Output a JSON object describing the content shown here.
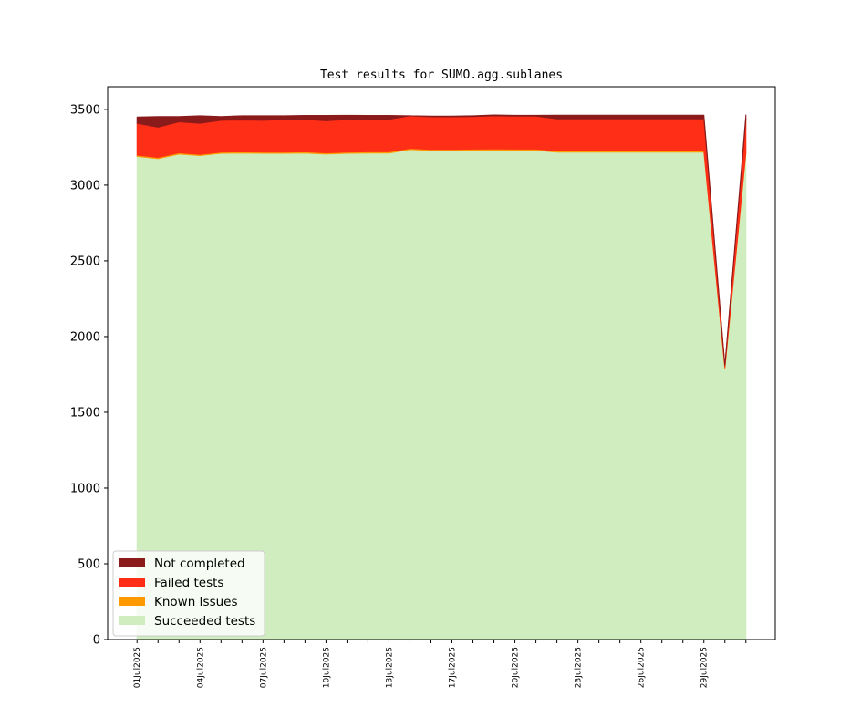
{
  "chart_data": {
    "type": "area",
    "title": "Test results for SUMO.agg.sublanes",
    "xlabel": "",
    "ylabel": "",
    "ylim": [
      0,
      3650
    ],
    "yticks": [
      0,
      500,
      1000,
      1500,
      2000,
      2500,
      3000,
      3500
    ],
    "x_tick_labels": [
      "01Jul2025",
      "04Jul2025",
      "07Jul2025",
      "10Jul2025",
      "13Jul2025",
      "17Jul2025",
      "20Jul2025",
      "23Jul2025",
      "26Jul2025",
      "29Jul2025"
    ],
    "x_tick_positions": [
      0,
      3,
      6,
      9,
      12,
      15,
      18,
      21,
      24,
      27
    ],
    "x_minor_ticks": [
      1,
      2,
      4,
      5,
      7,
      8,
      10,
      11,
      13,
      14,
      16,
      17,
      19,
      20,
      22,
      23,
      25,
      26,
      28,
      29
    ],
    "xlim": [
      -1.4,
      30.4
    ],
    "x": [
      0,
      1,
      2,
      3,
      4,
      5,
      6,
      7,
      8,
      9,
      10,
      11,
      12,
      13,
      14,
      15,
      16,
      17,
      18,
      19,
      20,
      21,
      22,
      23,
      24,
      25,
      26,
      27,
      28,
      29
    ],
    "series": [
      {
        "name": "Succeeded tests",
        "color": "#d0edc0",
        "values": [
          3190,
          3175,
          3205,
          3195,
          3210,
          3212,
          3210,
          3210,
          3212,
          3205,
          3210,
          3212,
          3212,
          3235,
          3228,
          3228,
          3230,
          3232,
          3230,
          3230,
          3218,
          3218,
          3218,
          3218,
          3218,
          3218,
          3218,
          3218,
          1790,
          3210
        ]
      },
      {
        "name": "Known Issues",
        "color": "#ff9900",
        "values": [
          8,
          8,
          8,
          8,
          8,
          8,
          8,
          8,
          8,
          8,
          8,
          8,
          8,
          8,
          8,
          8,
          8,
          8,
          8,
          8,
          8,
          8,
          8,
          8,
          8,
          8,
          8,
          8,
          5,
          8
        ]
      },
      {
        "name": "Failed tests",
        "color": "#ff2e17",
        "values": [
          210,
          200,
          205,
          205,
          210,
          210,
          210,
          215,
          215,
          212,
          215,
          215,
          215,
          215,
          215,
          215,
          215,
          218,
          218,
          218,
          212,
          212,
          212,
          212,
          212,
          212,
          212,
          212,
          15,
          220
        ]
      },
      {
        "name": "Not completed",
        "color": "#8b1a1a",
        "values": [
          42,
          70,
          35,
          50,
          25,
          28,
          30,
          25,
          25,
          35,
          28,
          25,
          25,
          0,
          5,
          5,
          5,
          5,
          5,
          5,
          24,
          24,
          24,
          24,
          24,
          24,
          24,
          24,
          0,
          25
        ]
      }
    ],
    "legend": {
      "placement": "lower-left",
      "order": [
        "Not completed",
        "Failed tests",
        "Known Issues",
        "Succeeded tests"
      ]
    },
    "grid": false
  }
}
